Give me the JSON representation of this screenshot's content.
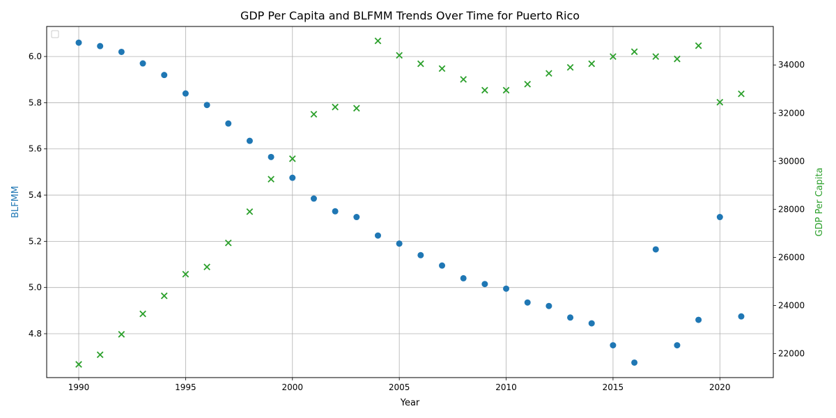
{
  "chart_data": {
    "type": "scatter",
    "title": "GDP Per Capita and BLFMM Trends Over Time for Puerto Rico",
    "xlabel": "Year",
    "ylabel_left": "BLFMM",
    "ylabel_right": "GDP Per Capita",
    "xlim": [
      1988.5,
      2022.5
    ],
    "ylim_left": [
      4.61,
      6.13
    ],
    "ylim_right": [
      21000,
      35600
    ],
    "x_ticks": [
      1990,
      1995,
      2000,
      2005,
      2010,
      2015,
      2020
    ],
    "y_ticks_left": [
      4.8,
      5.0,
      5.2,
      5.4,
      5.6,
      5.8,
      6.0
    ],
    "y_ticks_right": [
      22000,
      24000,
      26000,
      28000,
      30000,
      32000,
      34000
    ],
    "grid": true,
    "legend": "top-left (empty)",
    "x": [
      1990,
      1991,
      1992,
      1993,
      1994,
      1995,
      1996,
      1997,
      1998,
      1999,
      2000,
      2001,
      2002,
      2003,
      2004,
      2005,
      2006,
      2007,
      2008,
      2009,
      2010,
      2011,
      2012,
      2013,
      2014,
      2015,
      2016,
      2017,
      2018,
      2019,
      2020,
      2021
    ],
    "series": [
      {
        "axis": "left",
        "marker": "circle",
        "color": "#1f77b4",
        "values": [
          6.06,
          6.045,
          6.02,
          5.97,
          5.92,
          5.84,
          5.79,
          5.71,
          5.635,
          5.565,
          5.475,
          5.385,
          5.33,
          5.305,
          5.225,
          5.19,
          5.14,
          5.095,
          5.04,
          5.015,
          4.995,
          4.935,
          4.92,
          4.87,
          4.845,
          4.75,
          4.675,
          5.165,
          4.75,
          4.86,
          5.305,
          4.875
        ]
      },
      {
        "axis": "right",
        "marker": "x",
        "color": "#2ca02c",
        "values": [
          21550,
          21950,
          22800,
          23650,
          24400,
          25300,
          25600,
          26600,
          27900,
          29250,
          30100,
          31950,
          32250,
          32200,
          35000,
          34400,
          34050,
          33850,
          33400,
          32950,
          32950,
          33200,
          33650,
          33900,
          34050,
          34350,
          34550,
          34350,
          34250,
          34800,
          32450,
          32800
        ]
      }
    ]
  }
}
